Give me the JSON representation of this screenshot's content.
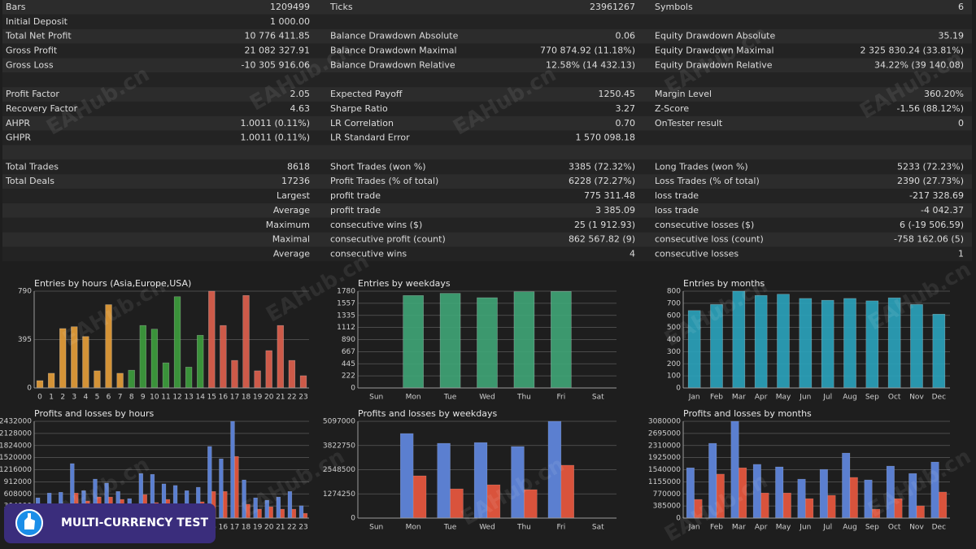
{
  "report": {
    "sections": [
      {
        "rows": [
          [
            "Bars",
            "1209499",
            "Ticks",
            "23961267",
            "Symbols",
            "6"
          ],
          [
            "Initial Deposit",
            "1 000.00",
            null,
            null,
            null,
            null
          ],
          [
            "Total Net Profit",
            "10 776 411.85",
            "Balance Drawdown Absolute",
            "0.06",
            "Equity Drawdown Absolute",
            "35.19"
          ],
          [
            "Gross Profit",
            "21 082 327.91",
            "Balance Drawdown Maximal",
            "770 874.92 (11.18%)",
            "Equity Drawdown Maximal",
            "2 325 830.24 (33.81%)"
          ],
          [
            "Gross Loss",
            "-10 305 916.06",
            "Balance Drawdown Relative",
            "12.58% (14 432.13)",
            "Equity Drawdown Relative",
            "34.22% (39 140.08)"
          ]
        ]
      },
      {
        "rows": [
          [
            "Profit Factor",
            "2.05",
            "Expected Payoff",
            "1250.45",
            "Margin Level",
            "360.20%"
          ],
          [
            "Recovery Factor",
            "4.63",
            "Sharpe Ratio",
            "3.27",
            "Z-Score",
            "-1.56 (88.12%)"
          ],
          [
            "AHPR",
            "1.0011 (0.11%)",
            "LR Correlation",
            "0.70",
            "OnTester result",
            "0"
          ],
          [
            "GHPR",
            "1.0011 (0.11%)",
            "LR Standard Error",
            "1 570 098.18",
            null,
            null
          ]
        ]
      },
      {
        "rows": [
          [
            "Total Trades",
            "8618",
            "Short Trades (won %)",
            "3385 (72.32%)",
            "Long Trades (won %)",
            "5233 (72.23%)"
          ],
          [
            "Total Deals",
            "17236",
            "Profit Trades (% of total)",
            "6228 (72.27%)",
            "Loss Trades (% of total)",
            "2390 (27.73%)"
          ],
          [
            null,
            "Largest",
            "profit trade",
            "775 311.48",
            "loss trade",
            "-217 328.69"
          ],
          [
            null,
            "Average",
            "profit trade",
            "3 385.09",
            "loss trade",
            "-4 042.37"
          ],
          [
            null,
            "Maximum",
            "consecutive wins ($)",
            "25 (1 912.93)",
            "consecutive losses ($)",
            "6 (-19 506.59)"
          ],
          [
            null,
            "Maximal",
            "consecutive profit (count)",
            "862 567.82 (9)",
            "consecutive loss (count)",
            "-758 162.06 (5)"
          ],
          [
            null,
            "Average",
            "consecutive wins",
            "4",
            "consecutive losses",
            "1"
          ]
        ]
      }
    ]
  },
  "chart_data": [
    {
      "type": "bar",
      "title": "Entries by hours (Asia,Europe,USA)",
      "categories": [
        "0",
        "1",
        "2",
        "3",
        "4",
        "5",
        "6",
        "7",
        "8",
        "9",
        "10",
        "11",
        "12",
        "13",
        "14",
        "15",
        "16",
        "17",
        "18",
        "19",
        "20",
        "21",
        "22",
        "23"
      ],
      "values": [
        60,
        120,
        485,
        500,
        420,
        140,
        680,
        120,
        145,
        510,
        480,
        205,
        745,
        170,
        430,
        790,
        510,
        225,
        755,
        140,
        305,
        510,
        225,
        100
      ],
      "colors": [
        "#e8a03a",
        "#e8a03a",
        "#e8a03a",
        "#e8a03a",
        "#e8a03a",
        "#e8a03a",
        "#e8a03a",
        "#e8a03a",
        "#3d9e3d",
        "#3d9e3d",
        "#3d9e3d",
        "#3d9e3d",
        "#3d9e3d",
        "#3d9e3d",
        "#3d9e3d",
        "#e0604e",
        "#e0604e",
        "#e0604e",
        "#e0604e",
        "#e0604e",
        "#e0604e",
        "#e0604e",
        "#e0604e",
        "#e0604e"
      ],
      "ylim": [
        0,
        790
      ],
      "yticks": [
        0,
        395,
        790
      ],
      "grid": true
    },
    {
      "type": "bar",
      "title": "Entries by weekdays",
      "categories": [
        "Sun",
        "Mon",
        "Tue",
        "Wed",
        "Thu",
        "Fri",
        "Sat"
      ],
      "values": [
        0,
        1700,
        1740,
        1660,
        1770,
        1775,
        0
      ],
      "color": "#3fa577",
      "ylim": [
        0,
        1780
      ],
      "yticks": [
        0,
        222,
        445,
        667,
        890,
        1112,
        1335,
        1557,
        1780
      ],
      "grid": true
    },
    {
      "type": "bar",
      "title": "Entries by months",
      "categories": [
        "Jan",
        "Feb",
        "Mar",
        "Apr",
        "May",
        "Jun",
        "Jul",
        "Aug",
        "Sep",
        "Oct",
        "Nov",
        "Dec"
      ],
      "values": [
        640,
        690,
        800,
        765,
        775,
        740,
        725,
        740,
        720,
        745,
        690,
        610
      ],
      "color": "#2aa3bd",
      "ylim": [
        0,
        800
      ],
      "yticks": [
        0,
        100,
        200,
        300,
        400,
        500,
        600,
        700,
        800
      ],
      "grid": true
    },
    {
      "type": "bar",
      "title": "Profits and losses by hours",
      "categories": [
        "0",
        "1",
        "2",
        "3",
        "4",
        "5",
        "6",
        "7",
        "8",
        "9",
        "10",
        "11",
        "12",
        "13",
        "14",
        "15",
        "16",
        "17",
        "18",
        "19",
        "20",
        "21",
        "22",
        "23"
      ],
      "series": [
        {
          "color": "#5b7fd0",
          "values": [
            510000,
            630000,
            650000,
            1370000,
            690000,
            980000,
            880000,
            670000,
            490000,
            1120000,
            1100000,
            860000,
            820000,
            690000,
            775000,
            1800000,
            1490000,
            2432000,
            960000,
            510000,
            450000,
            530000,
            670000,
            310000
          ]
        },
        {
          "color": "#d9533c",
          "values": [
            140000,
            350000,
            245000,
            630000,
            430000,
            530000,
            530000,
            470000,
            285000,
            590000,
            390000,
            470000,
            350000,
            350000,
            410000,
            670000,
            670000,
            1550000,
            350000,
            225000,
            285000,
            225000,
            225000,
            120000
          ]
        }
      ],
      "ylim": [
        0,
        2432000
      ],
      "yticks": [
        0,
        304000,
        608000,
        912000,
        1216000,
        1520000,
        1824000,
        2128000,
        2432000
      ],
      "grid": true
    },
    {
      "type": "bar",
      "title": "Profits and losses by weekdays",
      "categories": [
        "Sun",
        "Mon",
        "Tue",
        "Wed",
        "Thu",
        "Fri",
        "Sat"
      ],
      "series": [
        {
          "color": "#5b7fd0",
          "values": [
            0,
            4455000,
            3940000,
            3980000,
            3770000,
            5097000,
            0
          ]
        },
        {
          "color": "#d9533c",
          "values": [
            0,
            2227000,
            1540000,
            1755000,
            1500000,
            2785000,
            0
          ]
        }
      ],
      "ylim": [
        0,
        5097000
      ],
      "yticks": [
        0,
        1274250,
        2548500,
        3822750,
        5097000
      ],
      "grid": true
    },
    {
      "type": "bar",
      "title": "Profits and losses by months",
      "categories": [
        "Jan",
        "Feb",
        "Mar",
        "Apr",
        "May",
        "Jun",
        "Jul",
        "Aug",
        "Sep",
        "Oct",
        "Nov",
        "Dec"
      ],
      "series": [
        {
          "color": "#5b7fd0",
          "values": [
            1600000,
            2380000,
            3080000,
            1710000,
            1630000,
            1240000,
            1550000,
            2070000,
            1215000,
            1655000,
            1420000,
            1785000
          ]
        },
        {
          "color": "#d9533c",
          "values": [
            595000,
            1400000,
            1600000,
            800000,
            800000,
            620000,
            725000,
            1295000,
            285000,
            620000,
            390000,
            830000
          ]
        }
      ],
      "ylim": [
        0,
        3080000
      ],
      "yticks": [
        0,
        385000,
        770000,
        1155000,
        1540000,
        1925000,
        2310000,
        2695000,
        3080000
      ],
      "grid": true
    }
  ],
  "badge": "MULTI-CURRENCY TEST",
  "watermark": "EAHub.cn"
}
